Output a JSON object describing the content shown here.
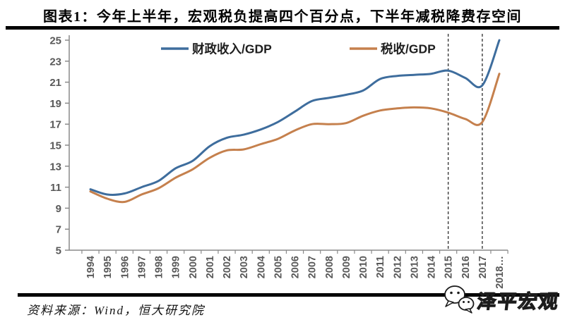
{
  "title": "图表1：今年上半年，宏观税负提高四个百分点，下半年减税降费存空间",
  "source": "资料来源：Wind，恒大研究院",
  "watermark": {
    "text": "泽平宏观",
    "icon": "wechat-icon"
  },
  "colors": {
    "fiscal_line": "#3e6d9d",
    "tax_line": "#c5804d",
    "axis": "#8a8a8a",
    "tick_label": "#595959",
    "legend_text": "#1f1f1f",
    "dashed_marker": "#3a3a3a",
    "rule": "#000000"
  },
  "chart_data": {
    "type": "line",
    "title": "图表1：今年上半年，宏观税负提高四个百分点，下半年减税降费存空间",
    "xlabel": "",
    "ylabel": "",
    "x_labels": [
      "1994",
      "1995",
      "1996",
      "1997",
      "1998",
      "1999",
      "2000",
      "2001",
      "2002",
      "2003",
      "2004",
      "2005",
      "2006",
      "2007",
      "2008",
      "2009",
      "2010",
      "2011",
      "2012",
      "2013",
      "2014",
      "2015",
      "2016",
      "2017",
      "2018…"
    ],
    "series": [
      {
        "name": "财政收入/GDP",
        "color": "#3e6d9d",
        "values": [
          10.8,
          10.3,
          10.4,
          11.0,
          11.6,
          12.8,
          13.5,
          14.9,
          15.7,
          16.0,
          16.5,
          17.2,
          18.2,
          19.2,
          19.5,
          19.8,
          20.2,
          21.3,
          21.6,
          21.7,
          21.8,
          22.1,
          21.4,
          20.7,
          25.0
        ]
      },
      {
        "name": "税收/GDP",
        "color": "#c5804d",
        "values": [
          10.6,
          9.9,
          9.6,
          10.3,
          10.9,
          11.9,
          12.7,
          13.8,
          14.5,
          14.6,
          15.1,
          15.6,
          16.4,
          17.0,
          17.0,
          17.1,
          17.8,
          18.3,
          18.5,
          18.6,
          18.5,
          18.1,
          17.5,
          17.2,
          21.8
        ]
      }
    ],
    "ylim": [
      5,
      25
    ],
    "ytick_step": 2,
    "grid": false,
    "legend_position": "top",
    "annotations": {
      "vlines_at_x_labels": [
        "2015",
        "2017"
      ]
    }
  }
}
